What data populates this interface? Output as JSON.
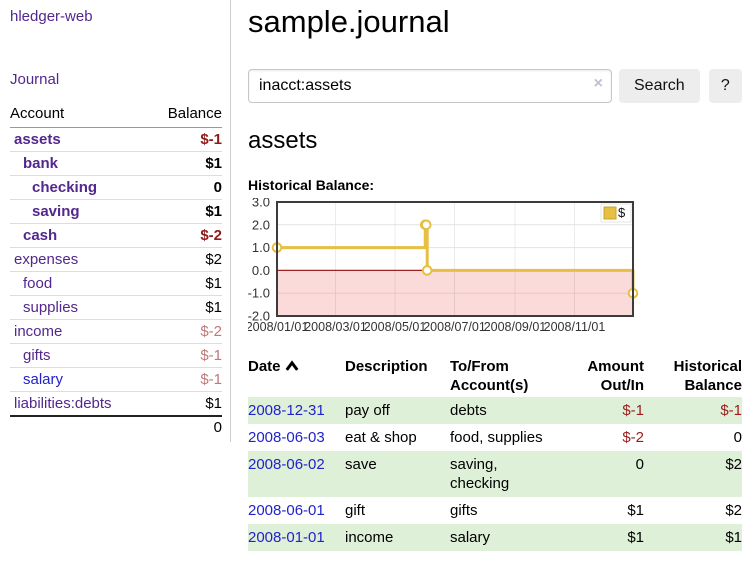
{
  "app": {
    "title": "hledger-web"
  },
  "colors": {
    "link_purple": "#53278e",
    "link_blue": "#2222cc",
    "negative_strong": "#8f1a1a",
    "negative_soft": "#c17878",
    "row_green": "#dff0d8"
  },
  "sidebar": {
    "journal_link": "Journal",
    "accounts": {
      "headers": [
        "Account",
        "Balance"
      ],
      "rows": [
        {
          "account": "assets",
          "balance": "$-1",
          "level": 1,
          "active": true,
          "balance_style": "neg-strong"
        },
        {
          "account": "bank",
          "balance": "$1",
          "level": 2,
          "active": true,
          "balance_style": "plain"
        },
        {
          "account": "checking",
          "balance": "0",
          "level": 3,
          "active": true,
          "balance_style": "plain"
        },
        {
          "account": "saving",
          "balance": "$1",
          "level": 3,
          "active": true,
          "balance_style": "plain"
        },
        {
          "account": "cash",
          "balance": "$-2",
          "level": 2,
          "active": true,
          "balance_style": "neg-strong"
        },
        {
          "account": "expenses",
          "balance": "$2",
          "level": 1,
          "active": false,
          "balance_style": "plain"
        },
        {
          "account": "food",
          "balance": "$1",
          "level": 2,
          "active": false,
          "balance_style": "plain"
        },
        {
          "account": "supplies",
          "balance": "$1",
          "level": 2,
          "active": false,
          "balance_style": "plain"
        },
        {
          "account": "income",
          "balance": "$-2",
          "level": 1,
          "active": false,
          "balance_style": "neg-soft"
        },
        {
          "account": "gifts",
          "balance": "$-1",
          "level": 2,
          "active": false,
          "balance_style": "neg-soft"
        },
        {
          "account": "salary",
          "balance": "$-1",
          "level": 2,
          "active": false,
          "balance_style": "neg-soft",
          "link_style": "blue"
        },
        {
          "account": "liabilities:debts",
          "balance": "$1",
          "level": 1,
          "active": false,
          "balance_style": "plain"
        }
      ],
      "total": "0"
    }
  },
  "main": {
    "title": "sample.journal",
    "search": {
      "value": "inacct:assets",
      "clear_icon": "×",
      "button_label": "Search",
      "help_label": "?"
    },
    "account_heading": "assets",
    "chart_label": "Historical Balance:",
    "register": {
      "headers": [
        "Date",
        "Description",
        "To/From\nAccount(s)",
        "Amount\nOut/In",
        "Historical\nBalance"
      ],
      "rows": [
        {
          "date": "2008-12-31",
          "description": "pay off",
          "accounts": "debts",
          "amount": "$-1",
          "amount_neg": true,
          "balance": "$-1",
          "balance_neg": true
        },
        {
          "date": "2008-06-03",
          "description": "eat & shop",
          "accounts": "food, supplies",
          "amount": "$-2",
          "amount_neg": true,
          "balance": "0",
          "balance_neg": false
        },
        {
          "date": "2008-06-02",
          "description": "save",
          "accounts": "saving, checking",
          "amount": "0",
          "amount_neg": false,
          "balance": "$2",
          "balance_neg": false
        },
        {
          "date": "2008-06-01",
          "description": "gift",
          "accounts": "gifts",
          "amount": "$1",
          "amount_neg": false,
          "balance": "$2",
          "balance_neg": false
        },
        {
          "date": "2008-01-01",
          "description": "income",
          "accounts": "salary",
          "amount": "$1",
          "amount_neg": false,
          "balance": "$1",
          "balance_neg": false
        }
      ]
    }
  },
  "chart_data": {
    "type": "line",
    "title": "Historical Balance:",
    "step": true,
    "x": [
      "2008/01/01",
      "2008/06/01",
      "2008/06/02",
      "2008/06/03",
      "2008/12/31"
    ],
    "values": [
      1,
      2,
      2,
      0,
      -1
    ],
    "series_name": "$",
    "xrange": [
      "2008/01/01",
      "2008/12/31"
    ],
    "ylim": [
      -2,
      3
    ],
    "yticks": [
      "3.0",
      "2.0",
      "1.0",
      "0.0",
      "-1.0",
      "-2.0"
    ],
    "xticks": [
      "2008/01/01",
      "2008/03/01",
      "2008/05/01",
      "2008/07/01",
      "2008/09/01",
      "2008/11/01"
    ],
    "grid": true,
    "legend_position": "top-right",
    "line_color": "#e6bf43",
    "marker_fill": "#ffffff",
    "negative_fill": "#fbdada",
    "zero_line_color": "#9e2222",
    "border_color": "#3c3c3c"
  }
}
